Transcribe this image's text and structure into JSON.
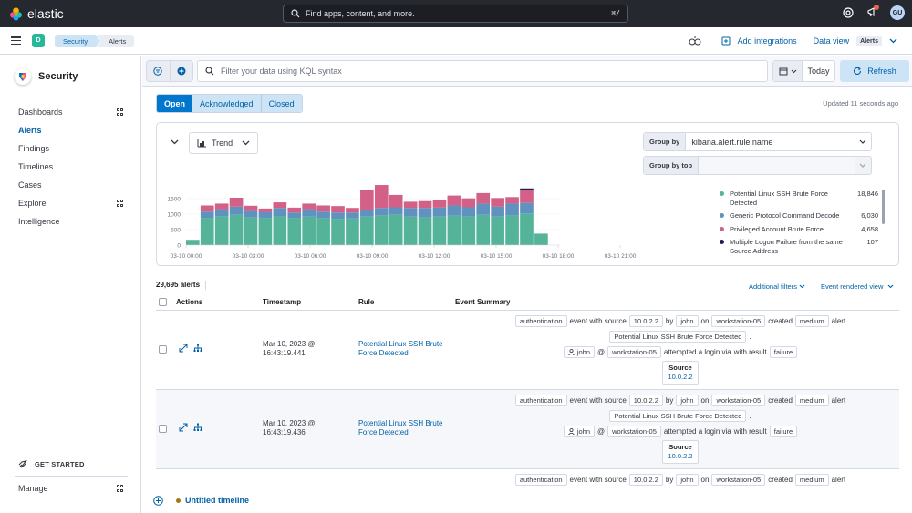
{
  "topbar": {
    "brand": "elastic",
    "search_placeholder": "Find apps, content, and more.",
    "search_shortcut": "⌘/",
    "user_initials": "GU"
  },
  "subbar": {
    "space_initial": "D",
    "breadcrumbs": [
      "Security",
      "Alerts"
    ],
    "add_integrations": "Add integrations",
    "data_view_label": "Data view",
    "data_view_value": "Alerts"
  },
  "sidenav": {
    "title": "Security",
    "items": [
      {
        "label": "Dashboards",
        "grid": true,
        "active": false
      },
      {
        "label": "Alerts",
        "grid": false,
        "active": true
      },
      {
        "label": "Findings",
        "grid": false,
        "active": false
      },
      {
        "label": "Timelines",
        "grid": false,
        "active": false
      },
      {
        "label": "Cases",
        "grid": false,
        "active": false
      },
      {
        "label": "Explore",
        "grid": true,
        "active": false
      },
      {
        "label": "Intelligence",
        "grid": false,
        "active": false
      }
    ],
    "get_started": "GET STARTED",
    "manage": "Manage"
  },
  "querybar": {
    "kql_placeholder": "Filter your data using KQL syntax",
    "date_label": "Today",
    "refresh_label": "Refresh"
  },
  "status_tabs": [
    "Open",
    "Acknowledged",
    "Closed"
  ],
  "updated_text": "Updated 11 seconds ago",
  "chart_panel": {
    "trend_label": "Trend",
    "group_by_label": "Group by",
    "group_by_value": "kibana.alert.rule.name",
    "group_by_top_label": "Group by top"
  },
  "chart_data": {
    "type": "bar",
    "stacked": true,
    "ylim": [
      0,
      2000
    ],
    "y_ticks": [
      "0",
      "500",
      "1000",
      "1500"
    ],
    "x_tick_labels": [
      "03-10 00:00",
      "03-10 03:00",
      "03-10 06:00",
      "03-10 09:00",
      "03-10 12:00",
      "03-10 15:00",
      "03-10 18:00",
      "03-10 21:00"
    ],
    "series": [
      {
        "name": "Potential Linux SSH Brute Force Detected",
        "color": "#54b399",
        "total": "18,846",
        "values": [
          170,
          880,
          930,
          980,
          900,
          880,
          940,
          880,
          920,
          880,
          850,
          860,
          920,
          960,
          980,
          920,
          900,
          920,
          950,
          920,
          980,
          920,
          960,
          1020,
          370
        ]
      },
      {
        "name": "Generic Protocol Command Decode",
        "color": "#6092c0",
        "total": "6,030",
        "values": [
          0,
          200,
          230,
          260,
          200,
          180,
          260,
          170,
          240,
          200,
          200,
          190,
          220,
          240,
          240,
          280,
          300,
          290,
          330,
          300,
          360,
          320,
          380,
          340,
          0
        ]
      },
      {
        "name": "Privileged Account Brute Force",
        "color": "#d36086",
        "total": "4,658",
        "values": [
          0,
          200,
          180,
          290,
          170,
          120,
          180,
          160,
          180,
          200,
          210,
          150,
          650,
          740,
          400,
          200,
          220,
          240,
          320,
          290,
          340,
          280,
          210,
          430,
          0
        ]
      },
      {
        "name": "Multiple Logon Failure from the same Source Address",
        "color": "#1f1c59",
        "total": "107",
        "values": [
          0,
          0,
          0,
          0,
          0,
          0,
          0,
          0,
          0,
          0,
          0,
          0,
          0,
          0,
          0,
          0,
          0,
          0,
          0,
          0,
          0,
          0,
          0,
          40,
          0
        ]
      }
    ]
  },
  "table": {
    "count_label": "29,695 alerts",
    "additional_filters": "Additional filters",
    "event_rendered_view": "Event rendered view",
    "columns": [
      "Actions",
      "Timestamp",
      "Rule",
      "Event Summary"
    ],
    "rows": [
      {
        "timestamp": "Mar 10, 2023 @ 16:43:19.441",
        "rule": "Potential Linux SSH Brute Force Detected"
      },
      {
        "timestamp": "Mar 10, 2023 @ 16:43:19.436",
        "rule": "Potential Linux SSH Brute Force Detected"
      },
      {
        "timestamp": "",
        "rule": ""
      }
    ],
    "summary": {
      "category": "authentication",
      "event_with_source": "event with source",
      "source_ip": "10.0.2.2",
      "by": "by",
      "user": "john",
      "on": "on",
      "host": "workstation-05",
      "created": "created",
      "severity": "medium",
      "alert_word": "alert",
      "rule_name": "Potential Linux SSH Brute Force Detected",
      "period": ".",
      "at": "@",
      "attempted": "attempted a login via",
      "with_result": "with result",
      "outcome": "failure",
      "source_label": "Source"
    }
  },
  "timeline": {
    "title": "Untitled timeline"
  }
}
